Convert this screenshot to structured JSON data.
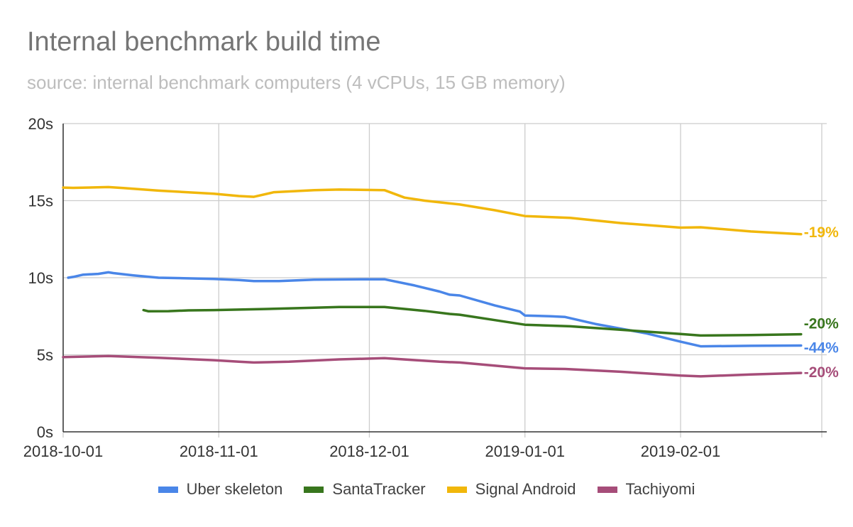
{
  "title": "Internal benchmark build time",
  "subtitle": "source:  internal benchmark computers (4 vCPUs, 15 GB memory)",
  "colors": {
    "axis": "#333333",
    "grid": "#cccccc",
    "tick_text": "#333333"
  },
  "chart_data": {
    "type": "line",
    "title": "Internal benchmark build time",
    "subtitle": "source:  internal benchmark computers (4 vCPUs, 15 GB memory)",
    "xlabel": "",
    "ylabel": "",
    "x_axis_type": "date",
    "xlim": [
      "2018-10-01",
      "2019-02-25"
    ],
    "ylim": [
      0,
      20
    ],
    "x_ticks": [
      "2018-10-01",
      "2018-11-01",
      "2018-12-01",
      "2019-01-01",
      "2019-02-01"
    ],
    "y_ticks": [
      0,
      5,
      10,
      15,
      20
    ],
    "y_tick_labels": [
      "0s",
      "5s",
      "10s",
      "15s",
      "20s"
    ],
    "grid": true,
    "legend_position": "bottom",
    "series": [
      {
        "name": "Uber skeleton",
        "color": "#4a86e8",
        "end_label": "-44%",
        "points": [
          [
            "2018-10-02",
            10.0
          ],
          [
            "2018-10-03",
            10.05
          ],
          [
            "2018-10-05",
            10.2
          ],
          [
            "2018-10-08",
            10.25
          ],
          [
            "2018-10-10",
            10.35
          ],
          [
            "2018-10-11",
            10.3
          ],
          [
            "2018-10-15",
            10.15
          ],
          [
            "2018-10-20",
            10.0
          ],
          [
            "2018-10-25",
            9.97
          ],
          [
            "2018-10-31",
            9.92
          ],
          [
            "2018-11-05",
            9.85
          ],
          [
            "2018-11-08",
            9.78
          ],
          [
            "2018-11-13",
            9.78
          ],
          [
            "2018-11-20",
            9.87
          ],
          [
            "2018-11-30",
            9.9
          ],
          [
            "2018-12-04",
            9.9
          ],
          [
            "2018-12-10",
            9.5
          ],
          [
            "2018-12-15",
            9.1
          ],
          [
            "2018-12-17",
            8.9
          ],
          [
            "2018-12-19",
            8.85
          ],
          [
            "2018-12-26",
            8.2
          ],
          [
            "2018-12-31",
            7.8
          ],
          [
            "2019-01-01",
            7.55
          ],
          [
            "2019-01-06",
            7.5
          ],
          [
            "2019-01-09",
            7.45
          ],
          [
            "2019-01-15",
            7.0
          ],
          [
            "2019-01-25",
            6.4
          ],
          [
            "2019-02-01",
            5.85
          ],
          [
            "2019-02-05",
            5.55
          ],
          [
            "2019-02-15",
            5.58
          ],
          [
            "2019-02-25",
            5.6
          ]
        ]
      },
      {
        "name": "SantaTracker",
        "color": "#38761d",
        "end_label": "-20%",
        "points": [
          [
            "2018-10-17",
            7.9
          ],
          [
            "2018-10-18",
            7.82
          ],
          [
            "2018-10-22",
            7.83
          ],
          [
            "2018-10-26",
            7.88
          ],
          [
            "2018-10-31",
            7.9
          ],
          [
            "2018-11-10",
            7.97
          ],
          [
            "2018-11-20",
            8.05
          ],
          [
            "2018-11-25",
            8.1
          ],
          [
            "2018-12-04",
            8.1
          ],
          [
            "2018-12-12",
            7.85
          ],
          [
            "2018-12-17",
            7.65
          ],
          [
            "2018-12-19",
            7.6
          ],
          [
            "2018-12-26",
            7.25
          ],
          [
            "2019-01-01",
            6.95
          ],
          [
            "2019-01-10",
            6.85
          ],
          [
            "2019-01-20",
            6.62
          ],
          [
            "2019-02-01",
            6.35
          ],
          [
            "2019-02-05",
            6.25
          ],
          [
            "2019-02-15",
            6.28
          ],
          [
            "2019-02-25",
            6.33
          ]
        ]
      },
      {
        "name": "Signal Android",
        "color": "#f1b70b",
        "end_label": "-19%",
        "points": [
          [
            "2018-10-01",
            15.85
          ],
          [
            "2018-10-03",
            15.83
          ],
          [
            "2018-10-10",
            15.88
          ],
          [
            "2018-10-13",
            15.82
          ],
          [
            "2018-10-20",
            15.65
          ],
          [
            "2018-10-31",
            15.45
          ],
          [
            "2018-11-05",
            15.3
          ],
          [
            "2018-11-08",
            15.25
          ],
          [
            "2018-11-12",
            15.55
          ],
          [
            "2018-11-20",
            15.68
          ],
          [
            "2018-11-25",
            15.72
          ],
          [
            "2018-12-04",
            15.68
          ],
          [
            "2018-12-08",
            15.2
          ],
          [
            "2018-12-12",
            15.0
          ],
          [
            "2018-12-17",
            14.82
          ],
          [
            "2018-12-19",
            14.75
          ],
          [
            "2018-12-26",
            14.38
          ],
          [
            "2019-01-01",
            14.0
          ],
          [
            "2019-01-10",
            13.88
          ],
          [
            "2019-01-20",
            13.55
          ],
          [
            "2019-02-01",
            13.25
          ],
          [
            "2019-02-05",
            13.27
          ],
          [
            "2019-02-15",
            13.0
          ],
          [
            "2019-02-25",
            12.82
          ]
        ]
      },
      {
        "name": "Tachiyomi",
        "color": "#a64d79",
        "end_label": "-20%",
        "points": [
          [
            "2018-10-01",
            4.85
          ],
          [
            "2018-10-05",
            4.88
          ],
          [
            "2018-10-10",
            4.92
          ],
          [
            "2018-10-20",
            4.8
          ],
          [
            "2018-10-31",
            4.65
          ],
          [
            "2018-11-05",
            4.55
          ],
          [
            "2018-11-08",
            4.5
          ],
          [
            "2018-11-15",
            4.55
          ],
          [
            "2018-11-25",
            4.7
          ],
          [
            "2018-12-04",
            4.78
          ],
          [
            "2018-12-15",
            4.55
          ],
          [
            "2018-12-19",
            4.5
          ],
          [
            "2019-01-01",
            4.12
          ],
          [
            "2019-01-09",
            4.08
          ],
          [
            "2019-01-20",
            3.9
          ],
          [
            "2019-02-01",
            3.65
          ],
          [
            "2019-02-05",
            3.6
          ],
          [
            "2019-02-15",
            3.72
          ],
          [
            "2019-02-25",
            3.82
          ]
        ]
      }
    ]
  }
}
